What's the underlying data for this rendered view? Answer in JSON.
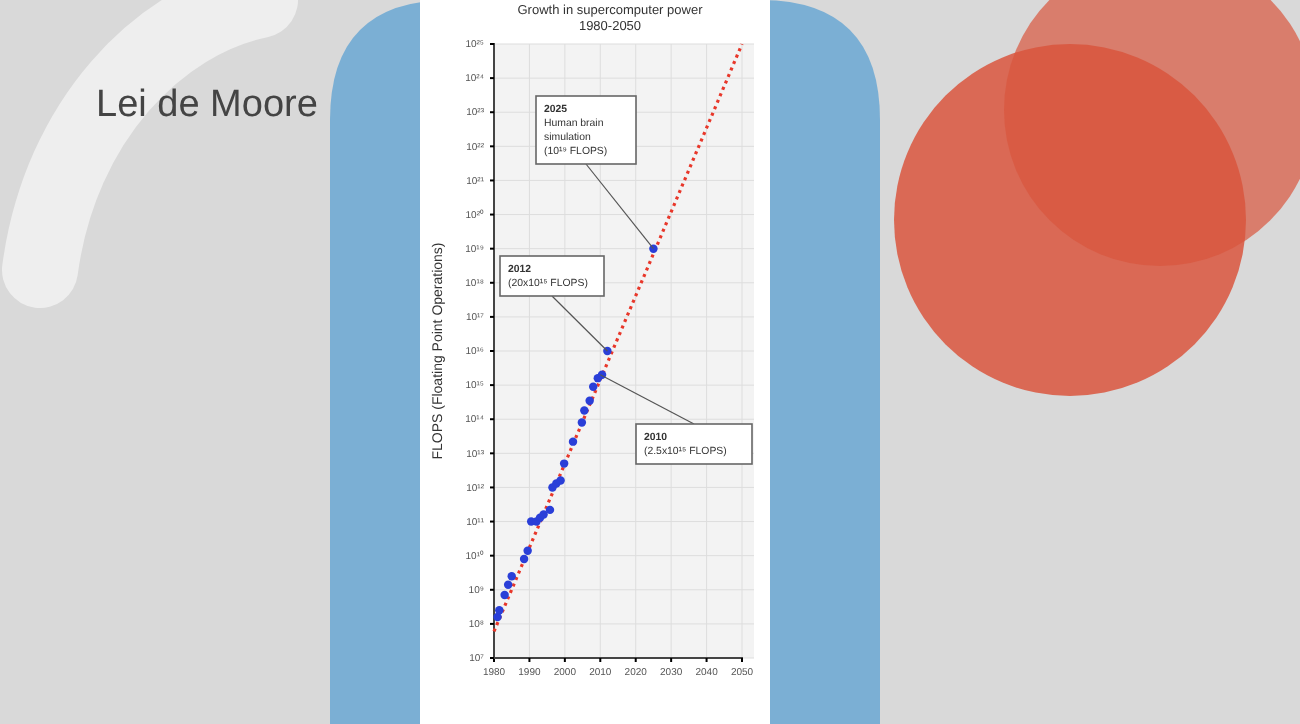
{
  "chart_data": {
    "type": "scatter",
    "title": "Lei de Moore",
    "subtitle": "Growth in supercomputer power\n1980-2050",
    "ylabel": "FLOPS (Floating Point Operations)",
    "log": true,
    "grid": true,
    "marker": "circle",
    "xlim": [
      1980,
      2050
    ],
    "xticks": [
      1980,
      1990,
      2000,
      2010,
      2020,
      2030,
      2040,
      2050
    ],
    "ylim": [
      10000000.0,
      1e+25
    ],
    "yticks": [
      {
        "value": 10000000.0,
        "label": "10⁷"
      },
      {
        "value": 100000000.0,
        "label": "10⁸"
      },
      {
        "value": 1000000000.0,
        "label": "10⁹"
      },
      {
        "value": 10000000000.0,
        "label": "10¹⁰"
      },
      {
        "value": 100000000000.0,
        "label": "10¹¹"
      },
      {
        "value": 1000000000000.0,
        "label": "10¹²"
      },
      {
        "value": 10000000000000.0,
        "label": "10¹³"
      },
      {
        "value": 100000000000000.0,
        "label": "10¹⁴"
      },
      {
        "value": 1000000000000000.0,
        "label": "10¹⁵"
      },
      {
        "value": 1e+16,
        "label": "10¹⁶"
      },
      {
        "value": 1e+17,
        "label": "10¹⁷"
      },
      {
        "value": 1e+18,
        "label": "10¹⁸"
      },
      {
        "value": 1e+19,
        "label": "10¹⁹"
      },
      {
        "value": 1e+20,
        "label": "10²⁰"
      },
      {
        "value": 1e+21,
        "label": "10²¹"
      },
      {
        "value": 1e+22,
        "label": "10²²"
      },
      {
        "value": 1e+23,
        "label": "10²³"
      },
      {
        "value": 1e+24,
        "label": "10²⁴"
      },
      {
        "value": 1e+25,
        "label": "10²⁵"
      }
    ],
    "series": [
      {
        "type": "line",
        "color": "#e8372a",
        "line_style": "dotted",
        "marker": "none",
        "x": [
          1980,
          2050
        ],
        "values": [
          60000000.0,
          1e+25
        ]
      },
      {
        "type": "scatter",
        "color": "#2a3fd8",
        "x": [
          1981,
          1981.5,
          1983,
          1984,
          1985,
          1988.5,
          1989.5,
          1990.5,
          1992,
          1993,
          1994,
          1995.8,
          1996.5,
          1997.6,
          1998.8,
          1999.8,
          2002.3,
          2004.8,
          2005.5,
          2007,
          2008,
          2009.3,
          2010.5,
          2012,
          2025
        ],
        "values": [
          160000000.0,
          250000000.0,
          700000000.0,
          1400000000.0,
          2500000000.0,
          8000000000.0,
          14000000000.0,
          100000000000.0,
          100000000000.0,
          130000000000.0,
          160000000000.0,
          220000000000.0,
          1000000000000.0,
          1300000000000.0,
          1600000000000.0,
          5000000000000.0,
          22000000000000.0,
          80000000000000.0,
          180000000000000.0,
          350000000000000.0,
          900000000000000.0,
          1600000000000000.0,
          2000000000000000.0,
          1e+16,
          1e+19
        ]
      }
    ],
    "annotations": [
      {
        "text": "2025\nHuman brain\nsimulation\n(10¹⁹ FLOPS)",
        "x": 2025,
        "y": 1e+19
      },
      {
        "text": "2012\n(20x10¹⁵ FLOPS)",
        "x": 2012,
        "y": 1e+16
      },
      {
        "text": "2010\n(2.5x10¹⁵ FLOPS)",
        "x": 2010,
        "y": 2000000000000000.0
      }
    ]
  }
}
